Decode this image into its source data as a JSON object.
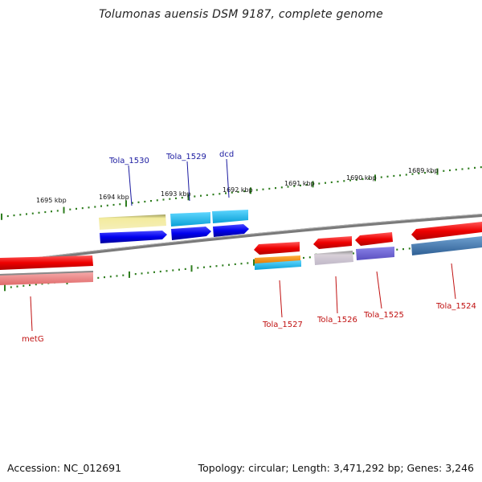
{
  "title": "Tolumonas auensis DSM 9187, complete genome",
  "footer": {
    "accession": "Accession: NC_012691",
    "summary": "Topology: circular; Length: 3,471,292 bp; Genes: 3,246"
  },
  "ticks": {
    "labels": [
      "1695 kbp",
      "1694 kbp",
      "1693 kbp",
      "1692 kbp",
      "1691 kbp",
      "1690 kbp",
      "1689 kbp"
    ],
    "color": "#2e7d1e"
  },
  "genes_forward": [
    {
      "name": "Tola_1530",
      "color": "#0000ee"
    },
    {
      "name": "Tola_1529",
      "color": "#0000ee"
    },
    {
      "name": "dcd",
      "color": "#0000ee"
    }
  ],
  "genes_reverse": [
    {
      "name": "metG",
      "color": "#ee0000"
    },
    {
      "name": "Tola_1527",
      "color": "#ee0000"
    },
    {
      "name": "Tola_1526",
      "color": "#ee0000"
    },
    {
      "name": "Tola_1525",
      "color": "#ee0000"
    },
    {
      "name": "Tola_1524",
      "color": "#ee0000"
    }
  ],
  "colors": {
    "backbone": "#808080",
    "forward_label": "#1a1aa0",
    "reverse_label": "#c01010"
  }
}
